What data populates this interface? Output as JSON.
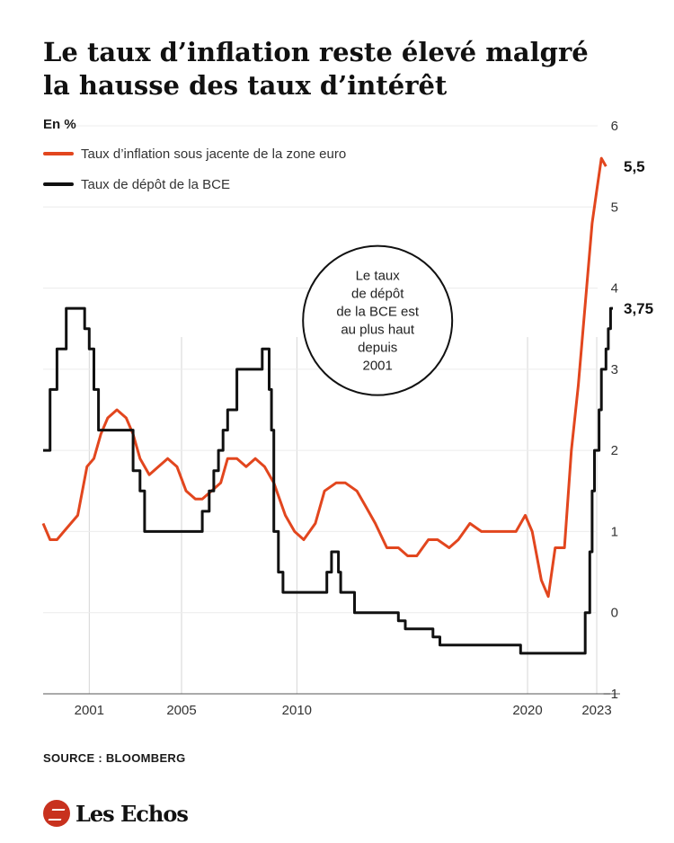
{
  "header": {
    "title_line1": "Le taux d’inflation reste élevé malgré",
    "title_line2": "la hausse des taux d’intérêt",
    "unit": "En %"
  },
  "legend": [
    {
      "label": "Taux d’inflation sous jacente de la zone euro",
      "color": "#e2461e"
    },
    {
      "label": "Taux de dépôt de la BCE",
      "color": "#111111"
    }
  ],
  "footer": {
    "source": "SOURCE : BLOOMBERG",
    "logo": "Les Echos"
  },
  "chart_data": {
    "type": "line",
    "xlim": [
      1999.0,
      2023.7
    ],
    "ylim": [
      -1,
      6
    ],
    "y_ticks": [
      6,
      5,
      4,
      3,
      2,
      1,
      0,
      -1
    ],
    "x_ticks": [
      2001,
      2005,
      2010,
      2020,
      2023
    ],
    "grid": "vertical lines at x ticks",
    "annotation": {
      "lines": [
        "Le taux",
        "de dépôt",
        "de la BCE est",
        "au plus haut",
        "depuis",
        "2001"
      ],
      "x": 2013.5,
      "y": 3.6
    },
    "series": [
      {
        "name": "Taux d’inflation sous jacente de la zone euro",
        "color": "#e2461e",
        "end_label": "5,5",
        "points": [
          [
            1999.0,
            1.1
          ],
          [
            1999.3,
            0.9
          ],
          [
            1999.6,
            0.9
          ],
          [
            1999.9,
            1.0
          ],
          [
            2000.2,
            1.1
          ],
          [
            2000.5,
            1.2
          ],
          [
            2000.9,
            1.8
          ],
          [
            2001.2,
            1.9
          ],
          [
            2001.5,
            2.2
          ],
          [
            2001.8,
            2.4
          ],
          [
            2002.2,
            2.5
          ],
          [
            2002.6,
            2.4
          ],
          [
            2002.9,
            2.2
          ],
          [
            2003.2,
            1.9
          ],
          [
            2003.6,
            1.7
          ],
          [
            2004.0,
            1.8
          ],
          [
            2004.4,
            1.9
          ],
          [
            2004.8,
            1.8
          ],
          [
            2005.2,
            1.5
          ],
          [
            2005.6,
            1.4
          ],
          [
            2005.9,
            1.4
          ],
          [
            2006.3,
            1.5
          ],
          [
            2006.7,
            1.6
          ],
          [
            2007.0,
            1.9
          ],
          [
            2007.4,
            1.9
          ],
          [
            2007.8,
            1.8
          ],
          [
            2008.2,
            1.9
          ],
          [
            2008.6,
            1.8
          ],
          [
            2009.0,
            1.6
          ],
          [
            2009.5,
            1.2
          ],
          [
            2009.9,
            1.0
          ],
          [
            2010.3,
            0.9
          ],
          [
            2010.8,
            1.1
          ],
          [
            2011.2,
            1.5
          ],
          [
            2011.7,
            1.6
          ],
          [
            2012.1,
            1.6
          ],
          [
            2012.6,
            1.5
          ],
          [
            2013.0,
            1.3
          ],
          [
            2013.4,
            1.1
          ],
          [
            2013.9,
            0.8
          ],
          [
            2014.4,
            0.8
          ],
          [
            2014.8,
            0.7
          ],
          [
            2015.2,
            0.7
          ],
          [
            2015.7,
            0.9
          ],
          [
            2016.1,
            0.9
          ],
          [
            2016.6,
            0.8
          ],
          [
            2017.0,
            0.9
          ],
          [
            2017.5,
            1.1
          ],
          [
            2018.0,
            1.0
          ],
          [
            2018.5,
            1.0
          ],
          [
            2019.0,
            1.0
          ],
          [
            2019.5,
            1.0
          ],
          [
            2019.9,
            1.2
          ],
          [
            2020.2,
            1.0
          ],
          [
            2020.6,
            0.4
          ],
          [
            2020.9,
            0.2
          ],
          [
            2021.2,
            0.8
          ],
          [
            2021.6,
            0.8
          ],
          [
            2021.9,
            2.0
          ],
          [
            2022.2,
            2.8
          ],
          [
            2022.5,
            3.8
          ],
          [
            2022.8,
            4.8
          ],
          [
            2023.0,
            5.2
          ],
          [
            2023.2,
            5.6
          ],
          [
            2023.4,
            5.5
          ]
        ]
      },
      {
        "name": "Taux de dépôt de la BCE",
        "color": "#111111",
        "end_label": "3,75",
        "points": [
          [
            1999.0,
            2.0
          ],
          [
            1999.3,
            2.0
          ],
          [
            1999.3,
            2.75
          ],
          [
            1999.6,
            2.75
          ],
          [
            1999.6,
            3.25
          ],
          [
            2000.0,
            3.25
          ],
          [
            2000.0,
            3.75
          ],
          [
            2000.8,
            3.75
          ],
          [
            2000.8,
            3.5
          ],
          [
            2001.0,
            3.5
          ],
          [
            2001.0,
            3.25
          ],
          [
            2001.2,
            3.25
          ],
          [
            2001.2,
            2.75
          ],
          [
            2001.4,
            2.75
          ],
          [
            2001.4,
            2.25
          ],
          [
            2002.9,
            2.25
          ],
          [
            2002.9,
            1.75
          ],
          [
            2003.2,
            1.75
          ],
          [
            2003.2,
            1.5
          ],
          [
            2003.4,
            1.5
          ],
          [
            2003.4,
            1.0
          ],
          [
            2005.9,
            1.0
          ],
          [
            2005.9,
            1.25
          ],
          [
            2006.2,
            1.25
          ],
          [
            2006.2,
            1.5
          ],
          [
            2006.4,
            1.5
          ],
          [
            2006.4,
            1.75
          ],
          [
            2006.6,
            1.75
          ],
          [
            2006.6,
            2.0
          ],
          [
            2006.8,
            2.0
          ],
          [
            2006.8,
            2.25
          ],
          [
            2007.0,
            2.25
          ],
          [
            2007.0,
            2.5
          ],
          [
            2007.4,
            2.5
          ],
          [
            2007.4,
            3.0
          ],
          [
            2008.5,
            3.0
          ],
          [
            2008.5,
            3.25
          ],
          [
            2008.8,
            3.25
          ],
          [
            2008.8,
            2.75
          ],
          [
            2008.9,
            2.75
          ],
          [
            2008.9,
            2.25
          ],
          [
            2009.0,
            2.25
          ],
          [
            2009.0,
            1.0
          ],
          [
            2009.2,
            1.0
          ],
          [
            2009.2,
            0.5
          ],
          [
            2009.4,
            0.5
          ],
          [
            2009.4,
            0.25
          ],
          [
            2011.3,
            0.25
          ],
          [
            2011.3,
            0.5
          ],
          [
            2011.5,
            0.5
          ],
          [
            2011.5,
            0.75
          ],
          [
            2011.8,
            0.75
          ],
          [
            2011.8,
            0.5
          ],
          [
            2011.9,
            0.5
          ],
          [
            2011.9,
            0.25
          ],
          [
            2012.5,
            0.25
          ],
          [
            2012.5,
            0.0
          ],
          [
            2014.4,
            0.0
          ],
          [
            2014.4,
            -0.1
          ],
          [
            2014.7,
            -0.1
          ],
          [
            2014.7,
            -0.2
          ],
          [
            2015.9,
            -0.2
          ],
          [
            2015.9,
            -0.3
          ],
          [
            2016.2,
            -0.3
          ],
          [
            2016.2,
            -0.4
          ],
          [
            2019.7,
            -0.4
          ],
          [
            2019.7,
            -0.5
          ],
          [
            2022.5,
            -0.5
          ],
          [
            2022.5,
            0.0
          ],
          [
            2022.7,
            0.0
          ],
          [
            2022.7,
            0.75
          ],
          [
            2022.8,
            0.75
          ],
          [
            2022.8,
            1.5
          ],
          [
            2022.9,
            1.5
          ],
          [
            2022.9,
            2.0
          ],
          [
            2023.1,
            2.0
          ],
          [
            2023.1,
            2.5
          ],
          [
            2023.2,
            2.5
          ],
          [
            2023.2,
            3.0
          ],
          [
            2023.4,
            3.0
          ],
          [
            2023.4,
            3.25
          ],
          [
            2023.5,
            3.25
          ],
          [
            2023.5,
            3.5
          ],
          [
            2023.6,
            3.5
          ],
          [
            2023.6,
            3.75
          ],
          [
            2023.7,
            3.75
          ]
        ]
      }
    ]
  }
}
